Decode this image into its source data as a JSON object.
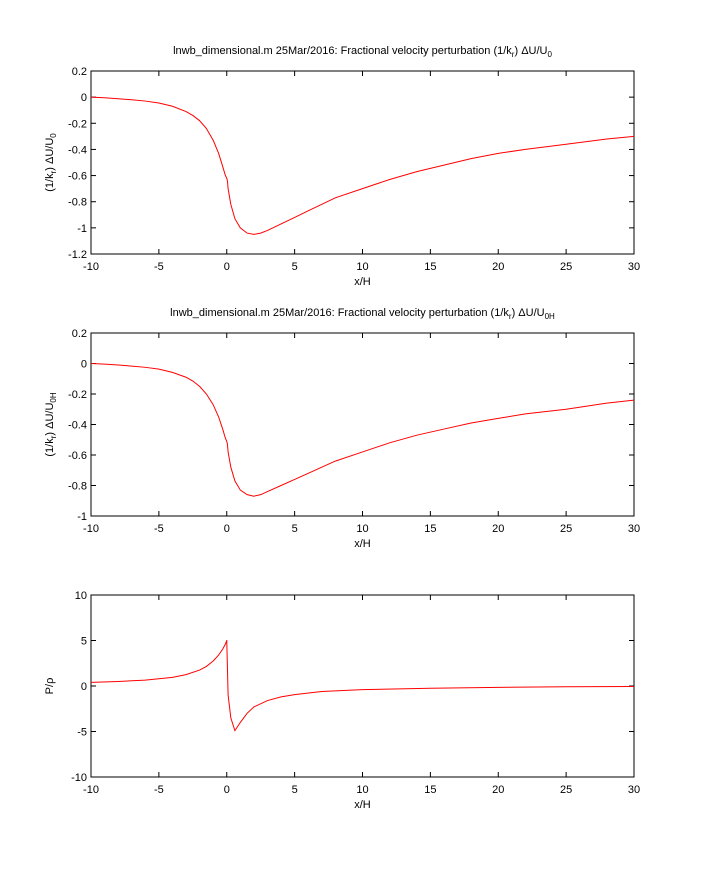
{
  "chart_data": [
    {
      "type": "line",
      "title": {
        "main": "lnwb_dimensional.m 25Mar/2016: Fractional velocity perturbation (1/k",
        "sub1": "r",
        "mid": ") ΔU/U",
        "sub2": "0"
      },
      "xlabel": "x/H",
      "ylabel": {
        "pre": "(1/k",
        "sub1": "r",
        "mid": ") ΔU/U",
        "sub2": "0"
      },
      "xlim": [
        -10,
        30
      ],
      "ylim": [
        -1.2,
        0.2
      ],
      "xticks": [
        -10,
        -5,
        0,
        5,
        10,
        15,
        20,
        25,
        30
      ],
      "yticks": [
        0.2,
        0,
        -0.2,
        -0.4,
        -0.6,
        -0.8,
        -1,
        -1.2
      ],
      "color": "#ff0000",
      "series": [
        {
          "x": [
            -10,
            -9,
            -8,
            -7,
            -6,
            -5,
            -4,
            -3,
            -2.5,
            -2,
            -1.5,
            -1,
            -0.6,
            -0.3,
            -0.1,
            0,
            0.05,
            0.1,
            0.3,
            0.6,
            1,
            1.5,
            2,
            2.5,
            3,
            4,
            5,
            6,
            7,
            8,
            10,
            12,
            14,
            16,
            18,
            20,
            22,
            25,
            28,
            30
          ],
          "y": [
            0,
            -0.005,
            -0.012,
            -0.02,
            -0.03,
            -0.045,
            -0.07,
            -0.11,
            -0.14,
            -0.18,
            -0.24,
            -0.33,
            -0.43,
            -0.53,
            -0.6,
            -0.62,
            -0.64,
            -0.7,
            -0.82,
            -0.93,
            -1.0,
            -1.04,
            -1.05,
            -1.04,
            -1.02,
            -0.97,
            -0.92,
            -0.87,
            -0.82,
            -0.77,
            -0.7,
            -0.63,
            -0.57,
            -0.52,
            -0.47,
            -0.43,
            -0.4,
            -0.36,
            -0.32,
            -0.3
          ]
        }
      ]
    },
    {
      "type": "line",
      "title": {
        "main": "lnwb_dimensional.m 25Mar/2016: Fractional velocity perturbation (1/k",
        "sub1": "r",
        "mid": ") ΔU/U",
        "sub2": "0H"
      },
      "xlabel": "x/H",
      "ylabel": {
        "pre": "(1/k",
        "sub1": "r",
        "mid": ") ΔU/U",
        "sub2": "0H"
      },
      "xlim": [
        -10,
        30
      ],
      "ylim": [
        -1,
        0.2
      ],
      "xticks": [
        -10,
        -5,
        0,
        5,
        10,
        15,
        20,
        25,
        30
      ],
      "yticks": [
        0.2,
        0,
        -0.2,
        -0.4,
        -0.6,
        -0.8,
        -1
      ],
      "color": "#ff0000",
      "series": [
        {
          "x": [
            -10,
            -9,
            -8,
            -7,
            -6,
            -5,
            -4,
            -3,
            -2.5,
            -2,
            -1.5,
            -1,
            -0.6,
            -0.3,
            -0.1,
            0,
            0.05,
            0.1,
            0.3,
            0.6,
            1,
            1.5,
            2,
            2.5,
            3,
            4,
            5,
            6,
            7,
            8,
            10,
            12,
            14,
            16,
            18,
            20,
            22,
            25,
            28,
            30
          ],
          "y": [
            0,
            -0.004,
            -0.01,
            -0.017,
            -0.025,
            -0.037,
            -0.058,
            -0.09,
            -0.115,
            -0.15,
            -0.2,
            -0.27,
            -0.35,
            -0.43,
            -0.49,
            -0.51,
            -0.53,
            -0.58,
            -0.68,
            -0.77,
            -0.83,
            -0.86,
            -0.87,
            -0.86,
            -0.84,
            -0.8,
            -0.76,
            -0.72,
            -0.68,
            -0.64,
            -0.58,
            -0.52,
            -0.47,
            -0.43,
            -0.39,
            -0.36,
            -0.33,
            -0.3,
            -0.26,
            -0.24
          ]
        }
      ]
    },
    {
      "type": "line",
      "title": {
        "main": "",
        "sub1": "",
        "mid": "",
        "sub2": ""
      },
      "xlabel": "x/H",
      "ylabel": {
        "pre": "P/ρ",
        "sub1": "",
        "mid": "",
        "sub2": ""
      },
      "xlim": [
        -10,
        30
      ],
      "ylim": [
        -10,
        10
      ],
      "xticks": [
        -10,
        -5,
        0,
        5,
        10,
        15,
        20,
        25,
        30
      ],
      "yticks": [
        10,
        5,
        0,
        -5,
        -10
      ],
      "color": "#ff0000",
      "series": [
        {
          "x": [
            -10,
            -8,
            -6,
            -4,
            -3,
            -2,
            -1.5,
            -1,
            -0.6,
            -0.3,
            -0.1,
            0,
            0.001,
            0.1,
            0.3,
            0.6,
            1,
            1.5,
            2,
            3,
            4,
            5,
            7,
            10,
            15,
            20,
            25,
            30
          ],
          "y": [
            0.4,
            0.5,
            0.65,
            0.95,
            1.25,
            1.75,
            2.15,
            2.75,
            3.4,
            4.05,
            4.6,
            5.0,
            5.0,
            -1.0,
            -3.5,
            -4.9,
            -4.0,
            -3.0,
            -2.3,
            -1.6,
            -1.2,
            -0.95,
            -0.6,
            -0.4,
            -0.25,
            -0.15,
            -0.08,
            -0.05
          ]
        }
      ]
    }
  ]
}
